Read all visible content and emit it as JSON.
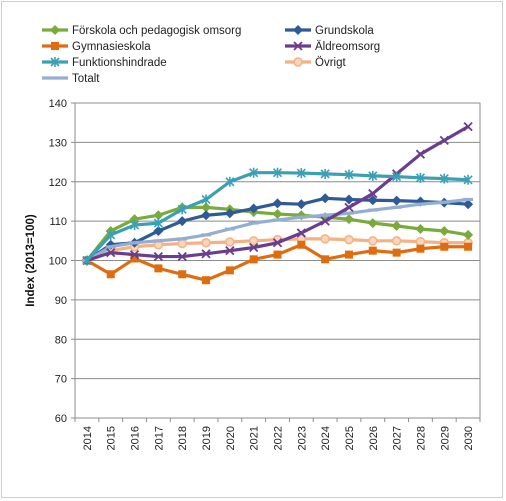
{
  "chart_data": {
    "type": "line",
    "title": "",
    "xlabel": "",
    "ylabel": "Index (2013=100)",
    "ylim": [
      60,
      140
    ],
    "yticks": [
      60,
      70,
      80,
      90,
      100,
      110,
      120,
      130,
      140
    ],
    "x": [
      "2014",
      "2015",
      "2016",
      "2017",
      "2018",
      "2019",
      "2020",
      "2021",
      "2022",
      "2023",
      "2024",
      "2025",
      "2026",
      "2027",
      "2028",
      "2029",
      "2030"
    ],
    "grid": true,
    "legend_position": "top",
    "series": [
      {
        "name": "Förskola och pedagogisk omsorg",
        "color": "#7aab3a",
        "marker": "diamond",
        "values": [
          100,
          107.5,
          110.5,
          111.5,
          113.5,
          113.5,
          113,
          112.3,
          111.8,
          111.5,
          111,
          110.5,
          109.5,
          108.8,
          108,
          107.5,
          106.5
        ]
      },
      {
        "name": "Grundskola",
        "color": "#2e5b95",
        "marker": "diamond",
        "values": [
          100,
          104,
          104.5,
          107.5,
          110,
          111.5,
          112,
          113.2,
          114.5,
          114.3,
          115.8,
          115.5,
          115.3,
          115.2,
          115,
          114.7,
          114.3
        ]
      },
      {
        "name": "Gymnasieskola",
        "color": "#e06c10",
        "marker": "square",
        "values": [
          100,
          96.5,
          100.5,
          98,
          96.5,
          95,
          97.5,
          100.3,
          101.5,
          104,
          100.3,
          101.5,
          102.5,
          102,
          103,
          103.5,
          103.5
        ]
      },
      {
        "name": "Äldreomsorg",
        "color": "#6b3d8e",
        "marker": "x",
        "values": [
          100,
          102,
          101.5,
          101,
          101,
          101.7,
          102.5,
          103.3,
          104.5,
          107,
          110,
          113.5,
          117,
          122,
          127,
          130.5,
          134
        ]
      },
      {
        "name": "Funktionshindrade",
        "color": "#3b9fb5",
        "marker": "star",
        "values": [
          100,
          106.5,
          109,
          109.5,
          113,
          115.5,
          120,
          122.3,
          122.3,
          122.2,
          122,
          121.8,
          121.5,
          121.3,
          121,
          120.8,
          120.5
        ]
      },
      {
        "name": "Övrigt",
        "color": "#f4b183",
        "marker": "circle",
        "values": [
          100,
          102.5,
          103.5,
          104,
          104.3,
          104.5,
          104.7,
          105,
          105.3,
          105.5,
          105.5,
          105.3,
          105,
          105,
          104.8,
          104.5,
          104.5
        ]
      },
      {
        "name": "Totalt",
        "color": "#94add3",
        "marker": "dash",
        "values": [
          100,
          103.5,
          104.5,
          105,
          105.5,
          106.5,
          108,
          109.5,
          110.3,
          111,
          111.5,
          112,
          112.8,
          113.5,
          114.3,
          114.8,
          115.5
        ]
      }
    ]
  }
}
